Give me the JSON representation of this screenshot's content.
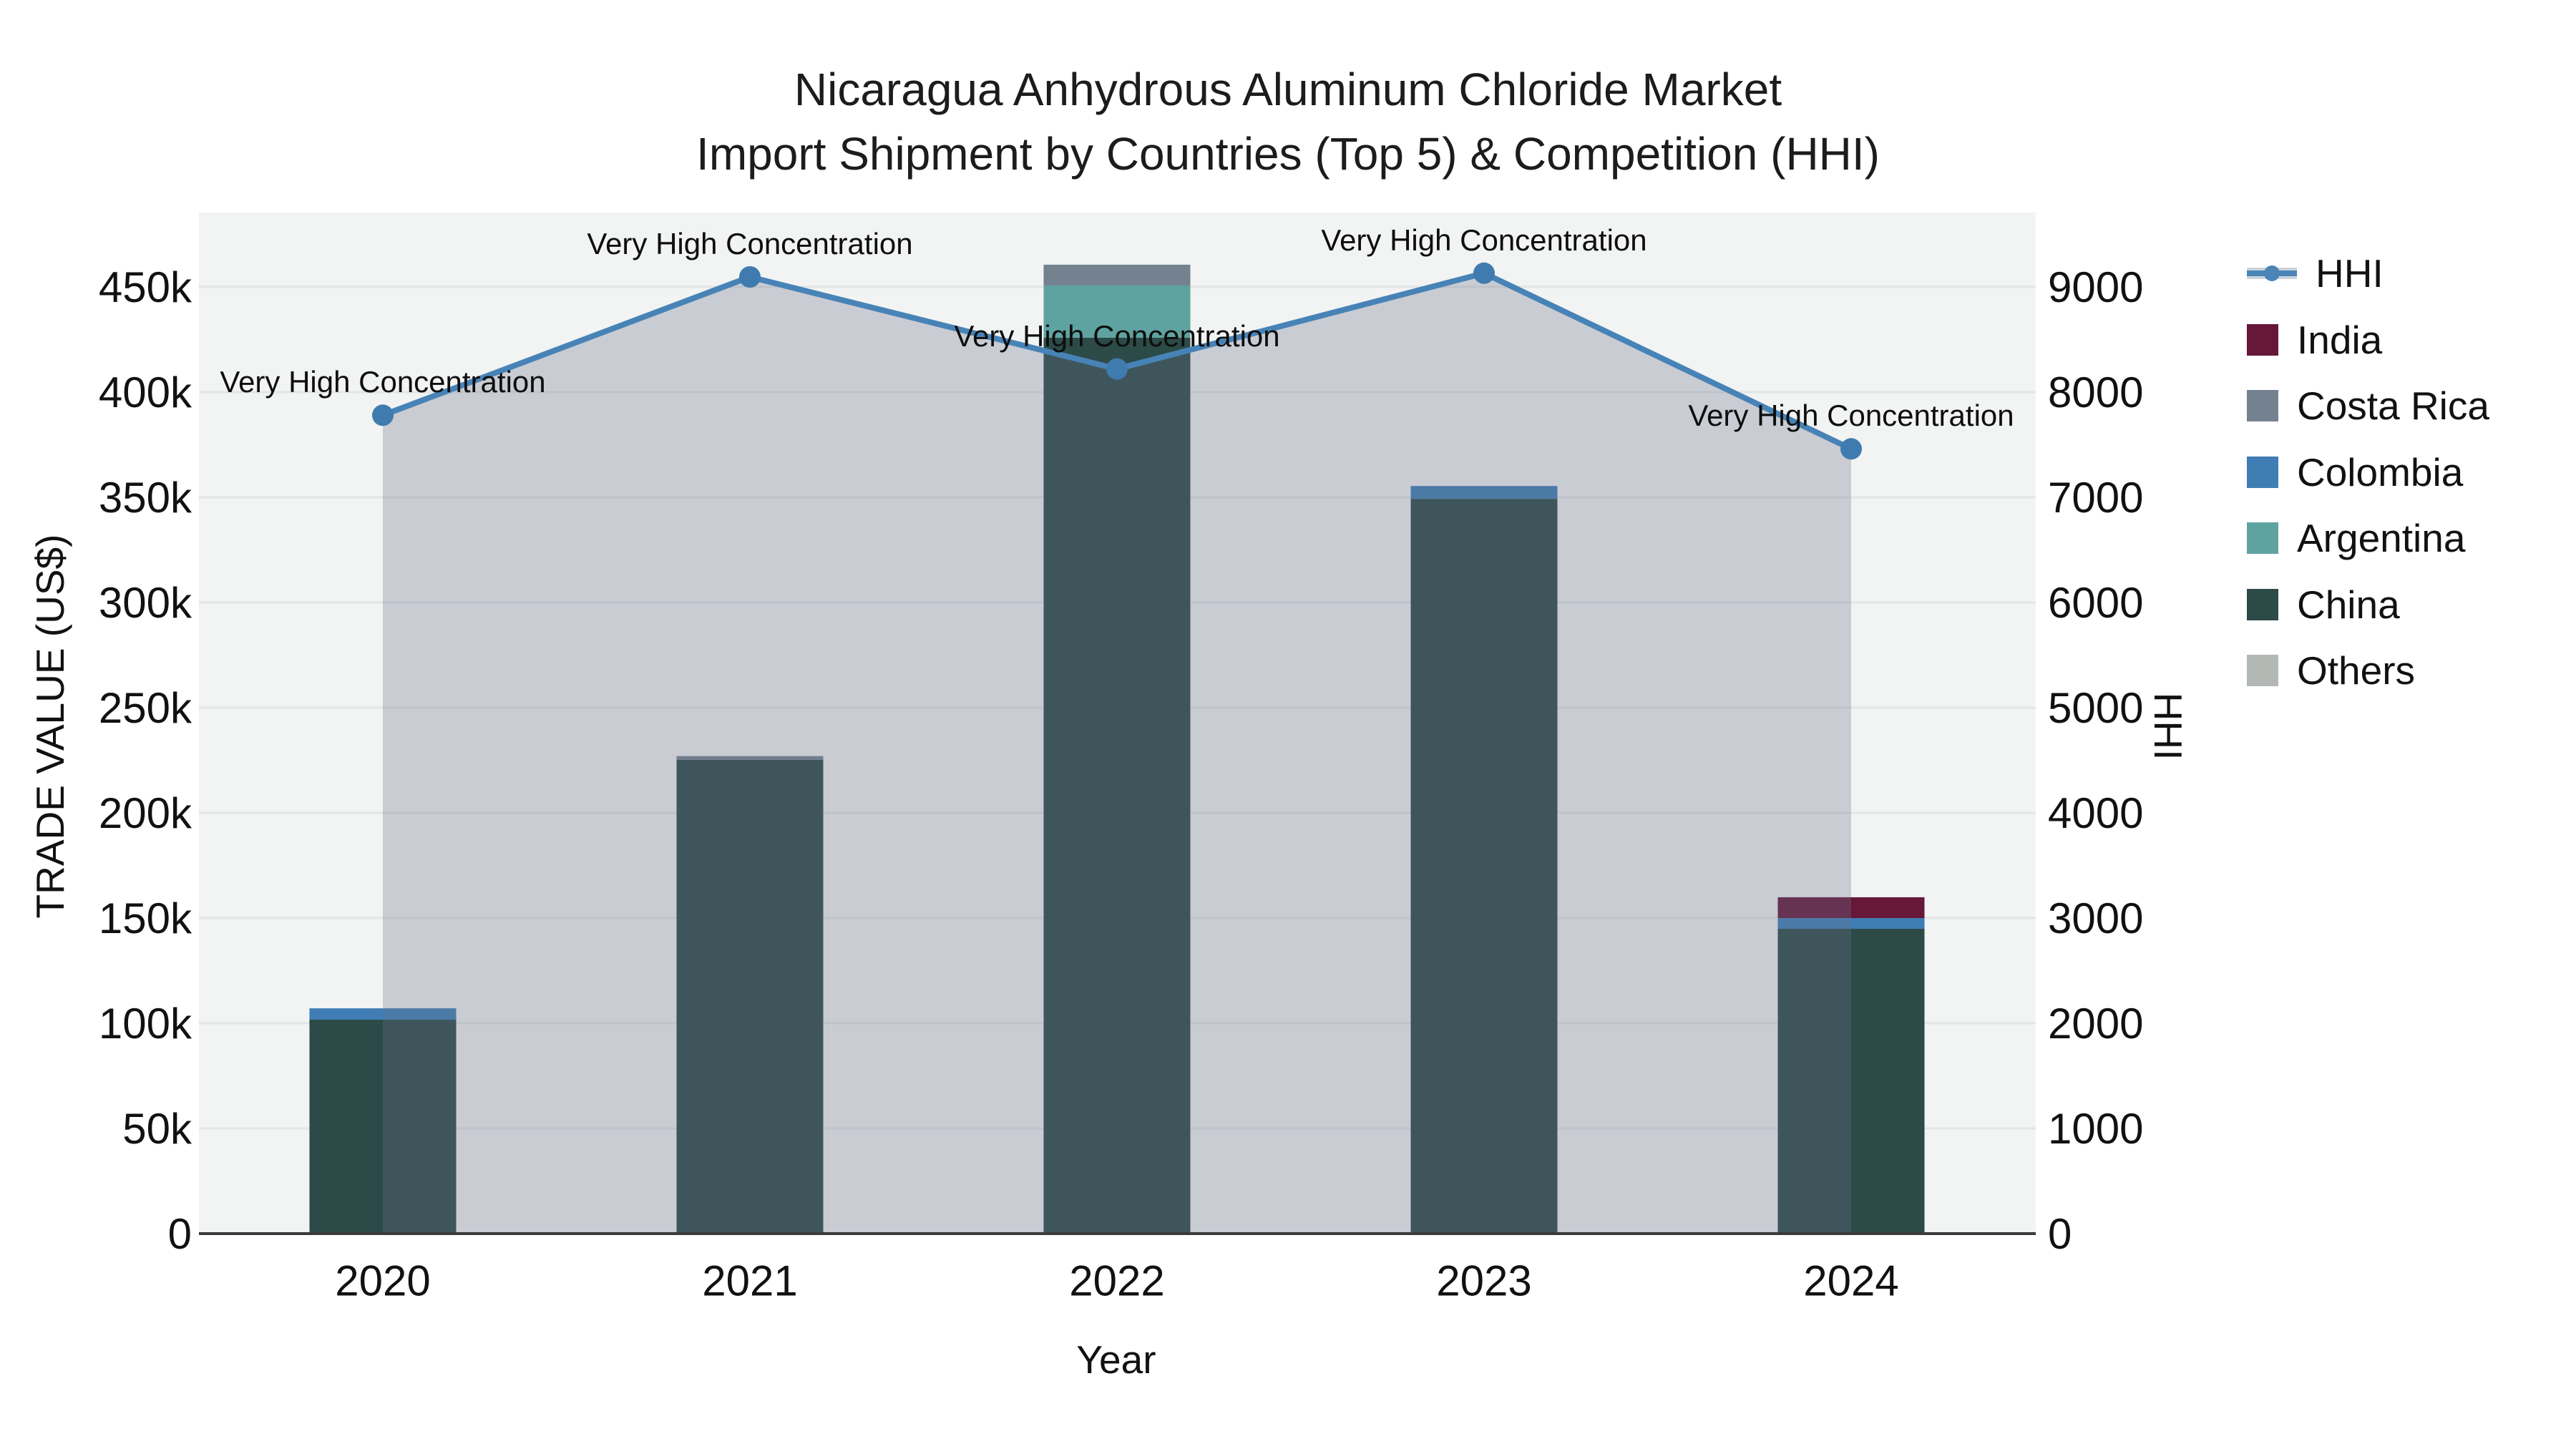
{
  "title": {
    "line1": "Nicaragua Anhydrous Aluminum Chloride Market",
    "line2": "Import Shipment by Countries (Top 5) & Competition (HHI)"
  },
  "axes": {
    "x": {
      "title": "Year",
      "categories": [
        "2020",
        "2021",
        "2022",
        "2023",
        "2024"
      ]
    },
    "left": {
      "title": "TRADE VALUE (US$)",
      "tick_labels": [
        "0",
        "50k",
        "100k",
        "150k",
        "200k",
        "250k",
        "300k",
        "350k",
        "400k",
        "450k"
      ],
      "tick_values_k": [
        0,
        50,
        100,
        150,
        200,
        250,
        300,
        350,
        400,
        450
      ],
      "max_k": 485.4
    },
    "right": {
      "title": "HHI",
      "tick_labels": [
        "0",
        "1000",
        "2000",
        "3000",
        "4000",
        "5000",
        "6000",
        "7000",
        "8000",
        "9000"
      ],
      "tick_values": [
        0,
        1000,
        2000,
        3000,
        4000,
        5000,
        6000,
        7000,
        8000,
        9000
      ],
      "max": 9707
    }
  },
  "legend": {
    "items": [
      {
        "label": "HHI",
        "type": "line",
        "color": "#4b85b8"
      },
      {
        "label": "India",
        "type": "bar",
        "color": "#66173a"
      },
      {
        "label": "Costa Rica",
        "type": "bar",
        "color": "#74828f"
      },
      {
        "label": "Colombia",
        "type": "bar",
        "color": "#3f7db4"
      },
      {
        "label": "Argentina",
        "type": "bar",
        "color": "#5fa3a1"
      },
      {
        "label": "China",
        "type": "bar",
        "color": "#2c4a47"
      },
      {
        "label": "Others",
        "type": "bar",
        "color": "#b3b8b4"
      }
    ]
  },
  "chart_data": {
    "type": "bar",
    "subtype": "stacked-bars-with-line-area-overlay",
    "title": "Nicaragua Anhydrous Aluminum Chloride Market — Import Shipment by Countries (Top 5) & Competition (HHI)",
    "categories": [
      "2020",
      "2021",
      "2022",
      "2023",
      "2024"
    ],
    "bar_unit": "US$ thousands",
    "stack_order_bottom_to_top": [
      "Others",
      "China",
      "Argentina",
      "Colombia",
      "Costa Rica",
      "India"
    ],
    "series": [
      {
        "name": "India",
        "color": "#66173a",
        "values_k": [
          0,
          0,
          0,
          0,
          9.9
        ]
      },
      {
        "name": "Costa Rica",
        "color": "#74828f",
        "values_k": [
          0,
          1.8,
          9.9,
          0,
          0
        ]
      },
      {
        "name": "Colombia",
        "color": "#3f7db4",
        "values_k": [
          5.4,
          0,
          0,
          6.1,
          5.1
        ]
      },
      {
        "name": "Argentina",
        "color": "#5fa3a1",
        "values_k": [
          0,
          0,
          24.8,
          0,
          0
        ]
      },
      {
        "name": "China",
        "color": "#2c4a47",
        "values_k": [
          101.7,
          225.2,
          425.9,
          349.3,
          144.9
        ]
      },
      {
        "name": "Others",
        "color": "#b3b8b4",
        "values_k": [
          0,
          0,
          0,
          0,
          0
        ]
      }
    ],
    "bar_totals_k": [
      107.1,
      227.0,
      460.6,
      355.4,
      159.9
    ],
    "hhi_line": {
      "name": "HHI",
      "color": "#4783b6",
      "marker_color": "#3f7bae",
      "area_fill": "rgba(105,117,140,0.30)",
      "values": [
        7780,
        9095,
        8220,
        9130,
        7460
      ]
    },
    "annotations": [
      "Very High Concentration",
      "Very High Concentration",
      "Very High Concentration",
      "Very High Concentration",
      "Very High Concentration"
    ],
    "xlabel": "Year",
    "ylabel_left": "TRADE VALUE (US$)",
    "ylabel_right": "HHI",
    "ylim_left_k": [
      0,
      485.4
    ],
    "ylim_right": [
      0,
      9707
    ],
    "grid": true,
    "legend_position": "right",
    "plot_bg": "#f2f3f3",
    "grid_color": "#e3e5e6",
    "axis_line_color": "#3b3b3b"
  }
}
